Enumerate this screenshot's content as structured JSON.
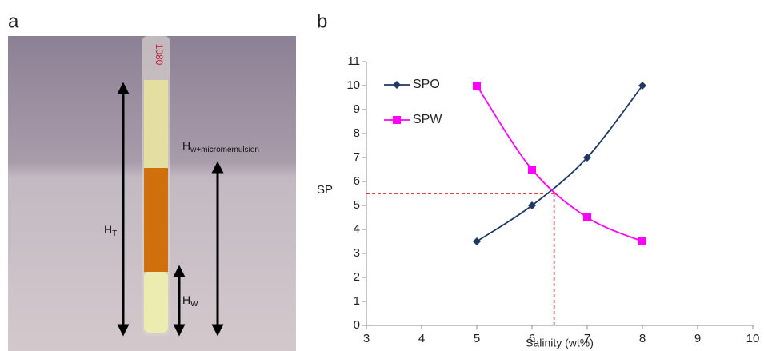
{
  "panels": [
    "a",
    "b"
  ],
  "photo": {
    "tube_label": "1080",
    "ht": {
      "main": "H",
      "sub": "T"
    },
    "hw": {
      "main": "H",
      "sub": "W"
    },
    "hwm": {
      "main": "H",
      "sub": "w+micromemulsion"
    }
  },
  "chart_data": {
    "type": "line",
    "x_label": "Salinity (wt%)",
    "y_label": "SP",
    "x": [
      5,
      6,
      7,
      8
    ],
    "series": [
      {
        "name": "SPO",
        "color": "#1f3864",
        "marker": "diamond",
        "values": [
          3.5,
          5,
          7,
          10
        ]
      },
      {
        "name": "SPW",
        "color": "#ff00ff",
        "marker": "square",
        "values": [
          10,
          6.5,
          4.5,
          3.5
        ]
      }
    ],
    "xlim": [
      3,
      10
    ],
    "xticks": [
      3,
      4,
      5,
      6,
      7,
      8,
      9,
      10
    ],
    "ylim": [
      0,
      11
    ],
    "yticks": [
      0,
      1,
      2,
      3,
      4,
      5,
      6,
      7,
      8,
      9,
      10,
      11
    ],
    "reference": {
      "x": 6.4,
      "y": 5.5,
      "color": "#e00000"
    },
    "legend": "top-left",
    "smooth": true
  }
}
